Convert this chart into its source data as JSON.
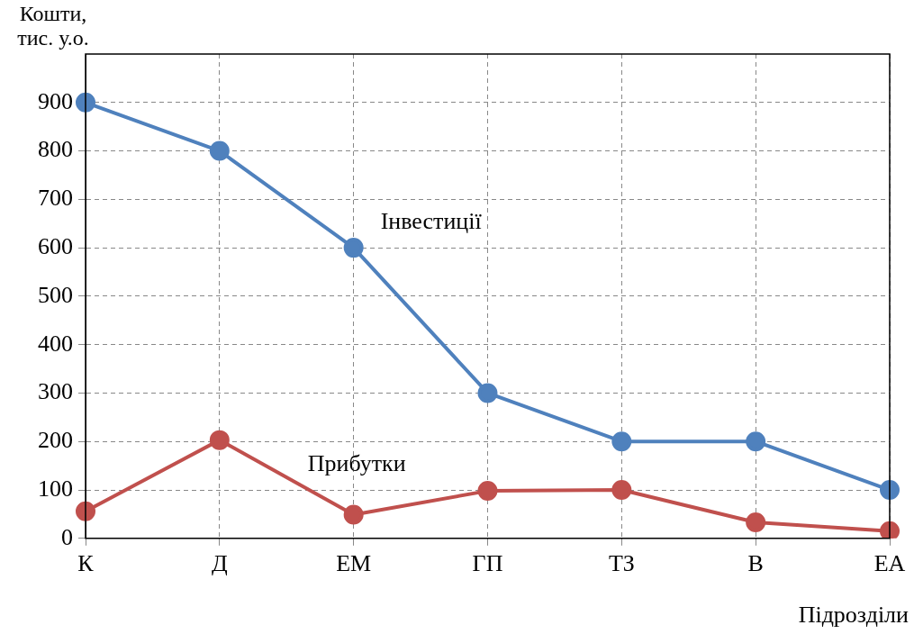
{
  "chart_data": {
    "type": "line",
    "ylabel": "Кошти, тис. у.о.",
    "xlabel": "Підрозділи",
    "categories": [
      "К",
      "Д",
      "ЕМ",
      "ГП",
      "ТЗ",
      "В",
      "ЕА"
    ],
    "series": [
      {
        "name": "Інвестиції",
        "color": "#4f81bd",
        "values": [
          900,
          800,
          600,
          300,
          200,
          200,
          100
        ]
      },
      {
        "name": "Прибутки",
        "color": "#c0504d",
        "values": [
          56,
          203,
          49,
          98,
          100,
          33,
          15
        ]
      }
    ],
    "ylim": [
      0,
      1000
    ],
    "yticks": [
      0,
      100,
      200,
      300,
      400,
      500,
      600,
      700,
      800,
      900
    ],
    "grid": true,
    "legend": false,
    "marker": "circle",
    "line_style": "solid"
  }
}
